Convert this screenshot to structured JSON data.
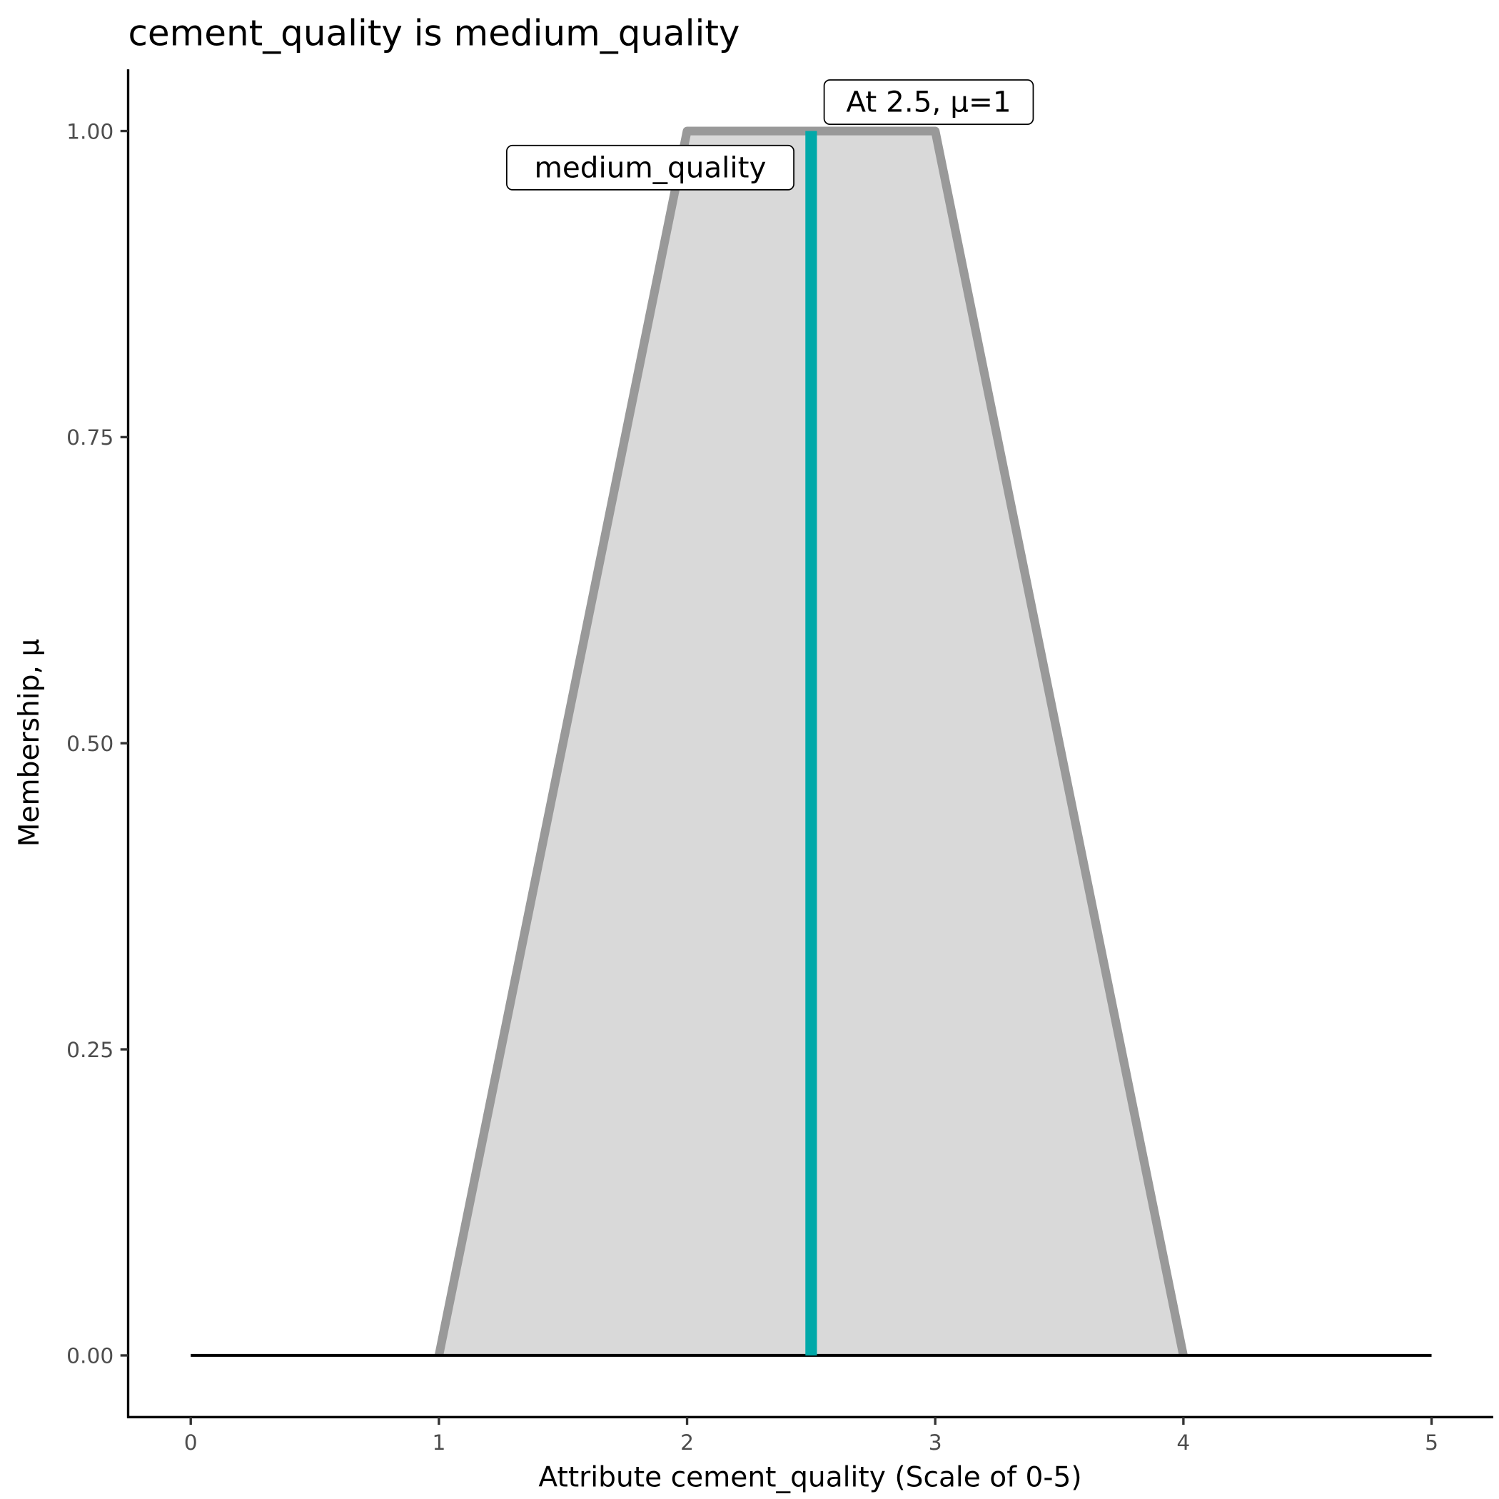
{
  "chart_data": {
    "type": "area",
    "title": "cement_quality is medium_quality",
    "xlabel": "Attribute cement_quality (Scale of 0-5)",
    "ylabel": "Membership, μ",
    "xlim": [
      -0.25,
      5.25
    ],
    "ylim": [
      -0.05,
      1.05
    ],
    "x_ticks": [
      "0",
      "1",
      "2",
      "3",
      "4",
      "5"
    ],
    "y_ticks": [
      "0.00",
      "0.25",
      "0.50",
      "0.75",
      "1.00"
    ],
    "grid": false,
    "legend": "none",
    "membership_function": {
      "label": "medium_quality",
      "x": [
        1,
        2,
        3,
        4
      ],
      "y": [
        0,
        1,
        1,
        0
      ],
      "fill_color": "#d9d9d9",
      "line_color": "#999999"
    },
    "baseline": {
      "x": [
        0,
        5
      ],
      "y": 0,
      "color": "#000000"
    },
    "marker": {
      "x": 2.5,
      "mu": 1,
      "label": "At 2.5, μ=1",
      "color": "#00a9a9"
    }
  }
}
